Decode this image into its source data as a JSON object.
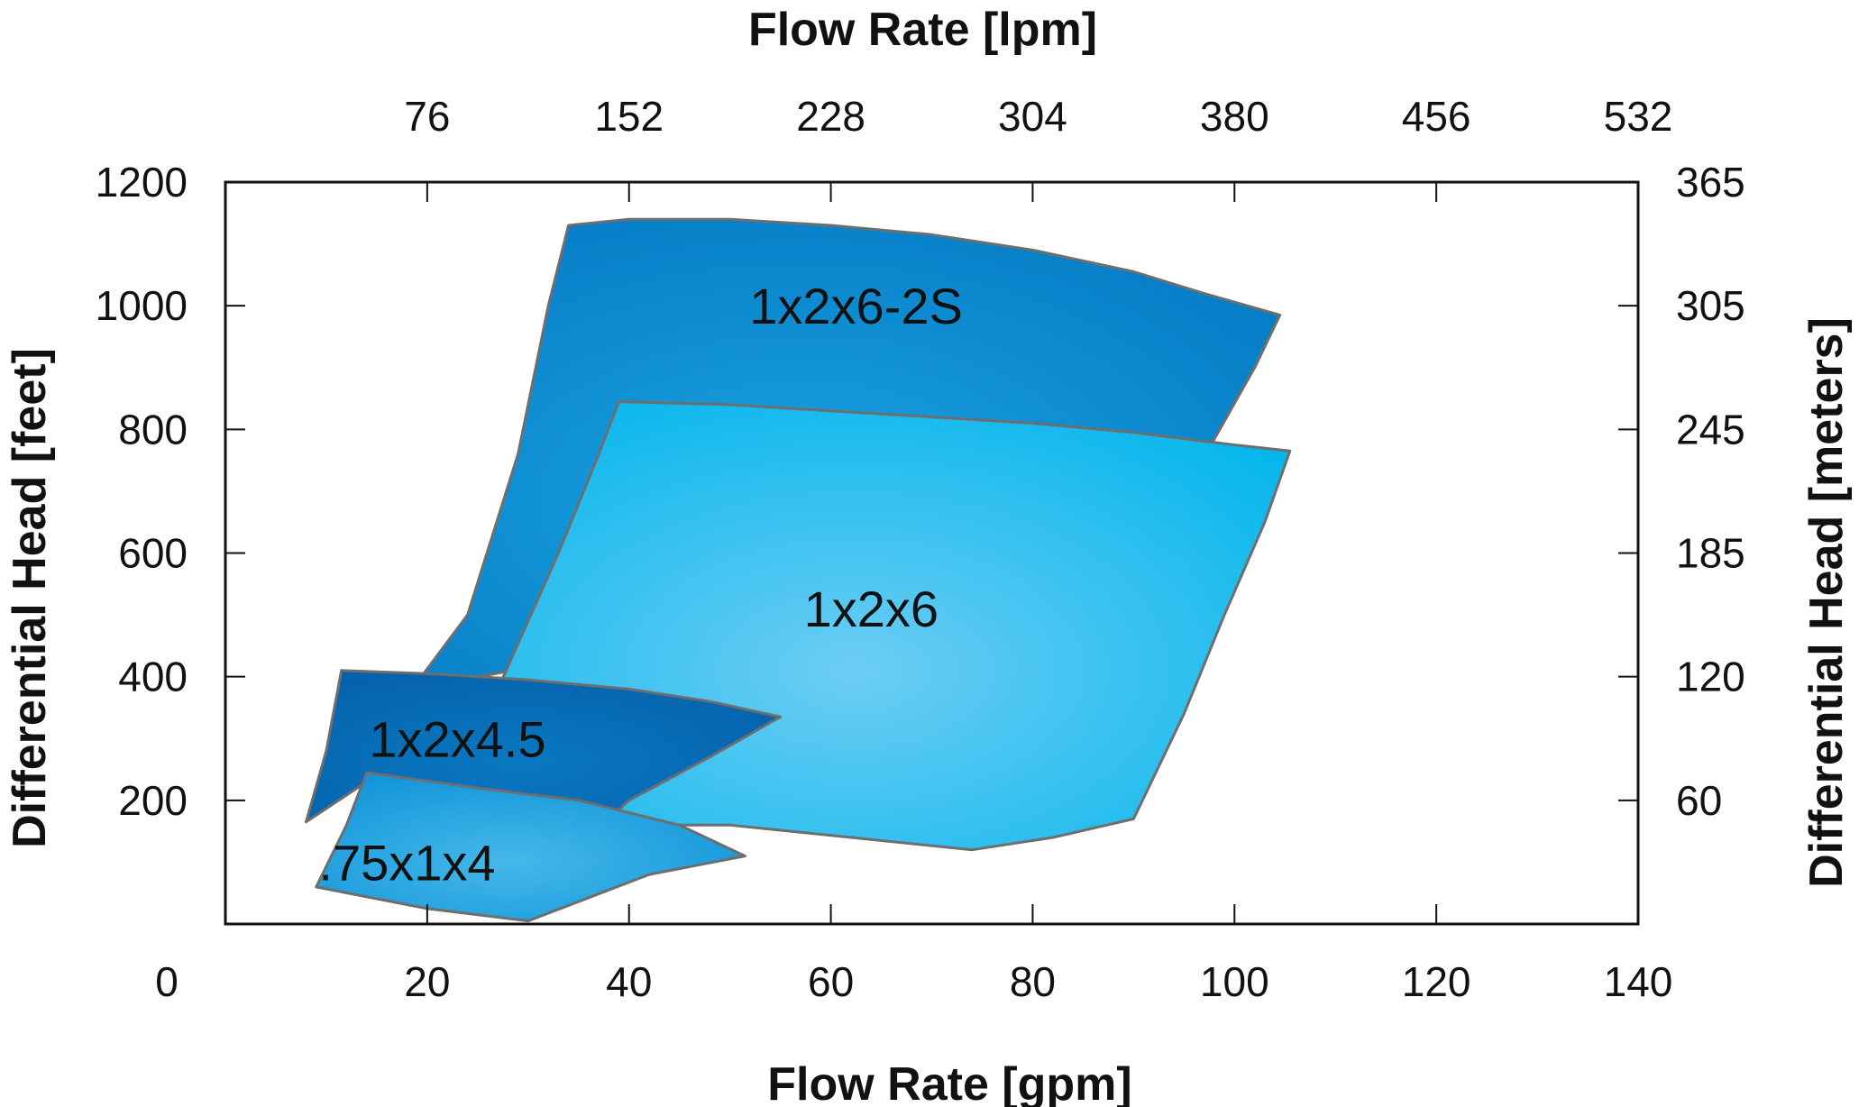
{
  "chart_data": {
    "type": "area",
    "title": "",
    "xlabel": "Flow Rate [gpm]",
    "x2label": "Flow Rate [lpm]",
    "ylabel": "Differential Head [feet]",
    "y2label": "Differential Head [meters]",
    "xlim": [
      0,
      140
    ],
    "ylim": [
      0,
      1200
    ],
    "x_ticks": [
      {
        "value": 0,
        "label": "0"
      },
      {
        "value": 20,
        "label": "20"
      },
      {
        "value": 40,
        "label": "40"
      },
      {
        "value": 60,
        "label": "60"
      },
      {
        "value": 80,
        "label": "80"
      },
      {
        "value": 100,
        "label": "100"
      },
      {
        "value": 120,
        "label": "120"
      },
      {
        "value": 140,
        "label": "140"
      }
    ],
    "x2_ticks": [
      {
        "value": 20,
        "label": "76"
      },
      {
        "value": 40,
        "label": "152"
      },
      {
        "value": 60,
        "label": "228"
      },
      {
        "value": 80,
        "label": "304"
      },
      {
        "value": 100,
        "label": "380"
      },
      {
        "value": 120,
        "label": "456"
      },
      {
        "value": 140,
        "label": "532"
      }
    ],
    "y_ticks": [
      {
        "value": 200,
        "label": "200"
      },
      {
        "value": 400,
        "label": "400"
      },
      {
        "value": 600,
        "label": "600"
      },
      {
        "value": 800,
        "label": "800"
      },
      {
        "value": 1000,
        "label": "1000"
      },
      {
        "value": 1200,
        "label": "1200"
      }
    ],
    "y2_ticks": [
      {
        "value": 200,
        "label": "60"
      },
      {
        "value": 400,
        "label": "120"
      },
      {
        "value": 600,
        "label": "185"
      },
      {
        "value": 800,
        "label": "245"
      },
      {
        "value": 1000,
        "label": "305"
      },
      {
        "value": 1200,
        "label": "365"
      }
    ],
    "grid": false,
    "regions": [
      {
        "label": "1x2x6-2S",
        "label_at": [
          62.5,
          1000
        ],
        "color_inner": "#1aa3e0",
        "color_outer": "#0478c4",
        "boundary": [
          [
            34,
            1130
          ],
          [
            40,
            1140
          ],
          [
            50,
            1140
          ],
          [
            60,
            1130
          ],
          [
            70,
            1115
          ],
          [
            80,
            1090
          ],
          [
            90,
            1055
          ],
          [
            97,
            1020
          ],
          [
            104.5,
            985
          ],
          [
            102,
            900
          ],
          [
            97.5,
            770
          ],
          [
            95,
            710
          ],
          [
            70,
            700
          ],
          [
            45,
            700
          ],
          [
            35,
            430
          ],
          [
            18.5,
            380
          ],
          [
            24,
            500
          ],
          [
            29,
            760
          ],
          [
            32,
            1000
          ]
        ]
      },
      {
        "label": "1x2x6",
        "label_at": [
          64,
          510
        ],
        "color_inner": "#6ccdf4",
        "color_outer": "#00b5ec",
        "boundary": [
          [
            39,
            845
          ],
          [
            50,
            840
          ],
          [
            60,
            830
          ],
          [
            70,
            820
          ],
          [
            80,
            810
          ],
          [
            90,
            795
          ],
          [
            100,
            775
          ],
          [
            105.5,
            765
          ],
          [
            103,
            650
          ],
          [
            99,
            500
          ],
          [
            95,
            340
          ],
          [
            90,
            170
          ],
          [
            82,
            140
          ],
          [
            74,
            120
          ],
          [
            62,
            140
          ],
          [
            50,
            160
          ],
          [
            40,
            160
          ],
          [
            35,
            220
          ],
          [
            27,
            380
          ],
          [
            33,
            600
          ],
          [
            37,
            760
          ]
        ]
      },
      {
        "label": "1x2x4.5",
        "label_at": [
          23,
          300
        ],
        "color_inner": "#0a78c2",
        "color_outer": "#045fa8",
        "boundary": [
          [
            11.5,
            410
          ],
          [
            20,
            405
          ],
          [
            30,
            395
          ],
          [
            40,
            380
          ],
          [
            48,
            360
          ],
          [
            55,
            335
          ],
          [
            48,
            270
          ],
          [
            40,
            200
          ],
          [
            39,
            185
          ],
          [
            20,
            210
          ],
          [
            14,
            230
          ],
          [
            8,
            165
          ],
          [
            10,
            280
          ]
        ]
      },
      {
        "label": ".75x1x4",
        "label_at": [
          18,
          100
        ],
        "color_inner": "#45b8ea",
        "color_outer": "#0a90d6",
        "boundary": [
          [
            14,
            245
          ],
          [
            25,
            220
          ],
          [
            35,
            200
          ],
          [
            45,
            160
          ],
          [
            51.5,
            110
          ],
          [
            42,
            80
          ],
          [
            30,
            5
          ],
          [
            20,
            25
          ],
          [
            9,
            60
          ],
          [
            12,
            160
          ]
        ]
      }
    ]
  }
}
